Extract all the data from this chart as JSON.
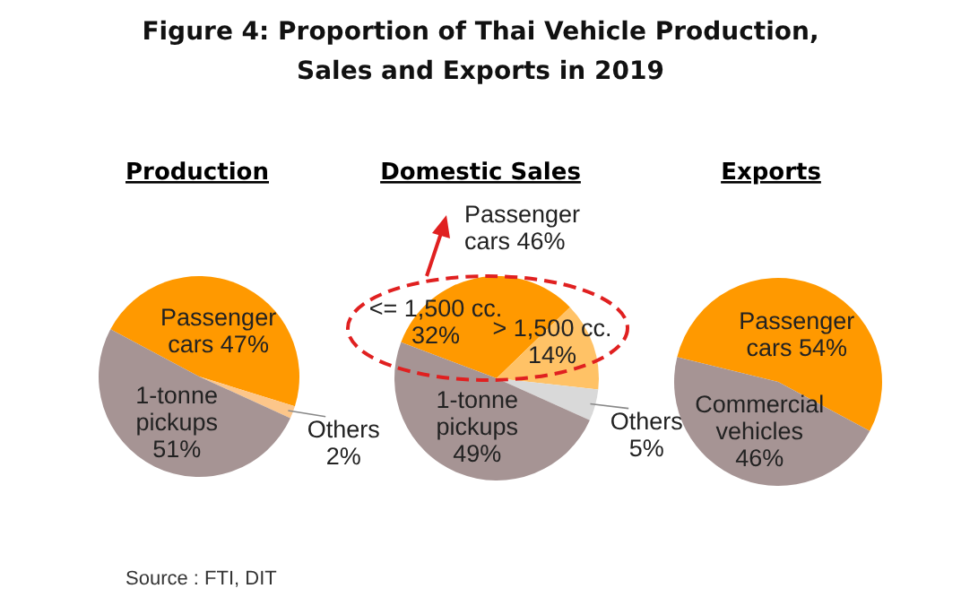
{
  "chart_data": [
    {
      "type": "pie",
      "title": "Production",
      "categories": [
        "Passenger cars",
        "Others",
        "1-tonne pickups"
      ],
      "values": [
        47,
        2,
        51
      ],
      "colors": [
        "#ff9900",
        "#fcc68a",
        "#a69494"
      ],
      "value_labels": [
        "47%",
        "2%",
        "51%"
      ]
    },
    {
      "type": "pie",
      "title": "Domestic Sales",
      "categories": [
        "<= 1,500 cc.",
        "> 1,500 cc.",
        "Others",
        "1-tonne pickups"
      ],
      "values": [
        32,
        14,
        5,
        49
      ],
      "colors": [
        "#ff9900",
        "#ffc266",
        "#d9d9d9",
        "#a69494"
      ],
      "value_labels": [
        "32%",
        "14%",
        "5%",
        "49%"
      ],
      "annotations": [
        "Passenger cars 46%"
      ]
    },
    {
      "type": "pie",
      "title": "Exports",
      "categories": [
        "Passenger cars",
        "Commercial vehicles"
      ],
      "values": [
        54,
        46
      ],
      "colors": [
        "#ff9900",
        "#a69494"
      ],
      "value_labels": [
        "54%",
        "46%"
      ]
    },
    {
      "type": "other",
      "title": "Figure 4: Proportion of Thai Vehicle Production, Sales and Exports in 2019",
      "annotations": [
        "Source : FTI, DIT"
      ]
    }
  ]
}
